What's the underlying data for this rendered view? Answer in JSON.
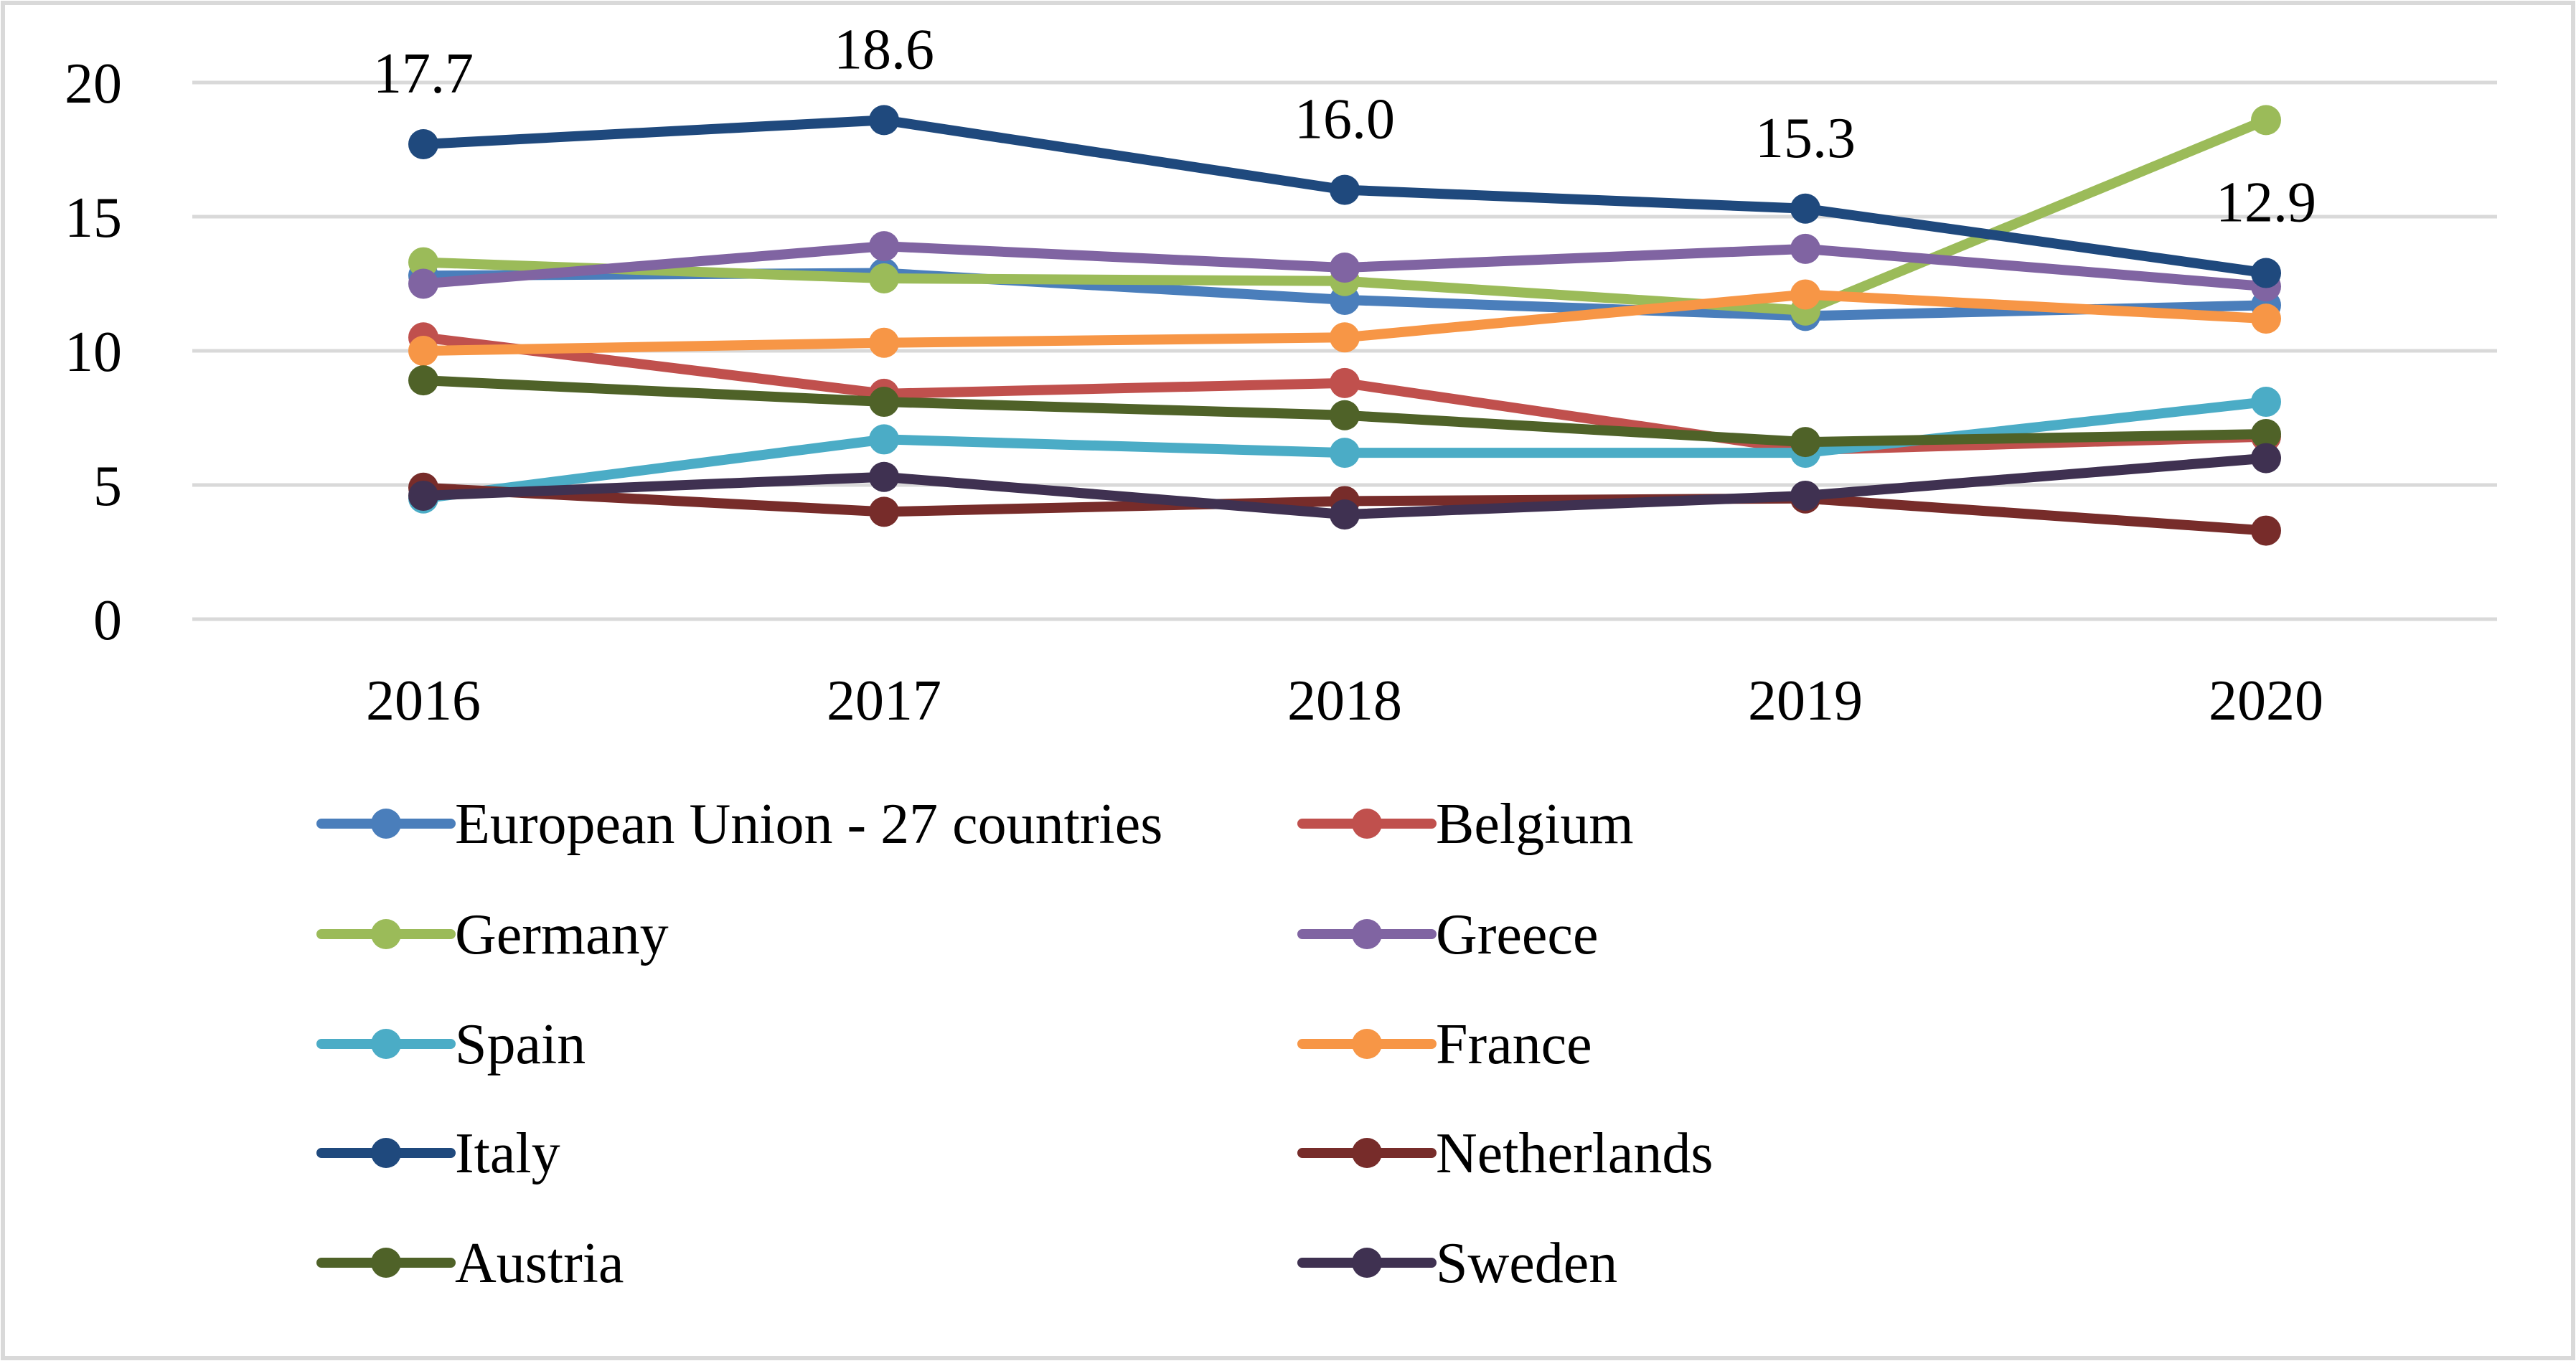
{
  "chart_data": {
    "type": "line",
    "title": "",
    "xlabel": "",
    "ylabel": "",
    "categories": [
      "2016",
      "2017",
      "2018",
      "2019",
      "2020"
    ],
    "ylim": [
      0,
      20
    ],
    "yticks": [
      0,
      5,
      10,
      15,
      20
    ],
    "grid": true,
    "legend_position": "bottom",
    "series": [
      {
        "name": "European Union - 27 countries",
        "color": "#4A7EBB",
        "values": [
          12.8,
          12.9,
          11.9,
          11.3,
          11.7
        ]
      },
      {
        "name": "Belgium",
        "color": "#C0504D",
        "values": [
          10.5,
          8.4,
          8.8,
          6.3,
          6.8
        ]
      },
      {
        "name": "Germany",
        "color": "#9BBB59",
        "values": [
          13.3,
          12.7,
          12.6,
          11.5,
          18.6
        ]
      },
      {
        "name": "Greece",
        "color": "#8064A2",
        "values": [
          12.5,
          13.9,
          13.1,
          13.8,
          12.4
        ]
      },
      {
        "name": "Spain",
        "color": "#4BACC6",
        "values": [
          4.5,
          6.7,
          6.2,
          6.2,
          8.1
        ]
      },
      {
        "name": "France",
        "color": "#F79646",
        "values": [
          10.0,
          10.3,
          10.5,
          12.1,
          11.2
        ]
      },
      {
        "name": "Italy",
        "color": "#1F497D",
        "values": [
          17.7,
          18.6,
          16.0,
          15.3,
          12.9
        ]
      },
      {
        "name": "Netherlands",
        "color": "#772C2A",
        "values": [
          4.9,
          4.0,
          4.4,
          4.5,
          3.3
        ]
      },
      {
        "name": "Austria",
        "color": "#4F6228",
        "values": [
          8.9,
          8.1,
          7.6,
          6.6,
          6.9
        ]
      },
      {
        "name": "Sweden",
        "color": "#3F3151",
        "values": [
          4.6,
          5.3,
          3.9,
          4.6,
          6.0
        ]
      }
    ],
    "data_labels": {
      "series": "Italy",
      "labels": [
        "17.7",
        "18.6",
        "16.0",
        "15.3",
        "12.9"
      ]
    },
    "styles": {
      "grid_color": "#D9D9D9",
      "border_color": "#D9D9D9",
      "text_color": "#000000"
    }
  }
}
